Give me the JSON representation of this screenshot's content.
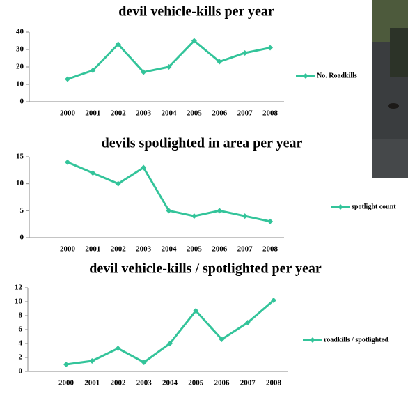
{
  "chart_data": [
    {
      "type": "line",
      "title": "devil vehicle-kills per year",
      "categories": [
        "2000",
        "2001",
        "2002",
        "2003",
        "2004",
        "2005",
        "2006",
        "2007",
        "2008"
      ],
      "series": [
        {
          "name": "No. Roadkills",
          "color": "#33c49a",
          "values": [
            13,
            18,
            33,
            17,
            20,
            35,
            23,
            28,
            31
          ]
        }
      ],
      "ylim": [
        0,
        40
      ],
      "yticks": [
        0,
        10,
        20,
        30,
        40
      ]
    },
    {
      "type": "line",
      "title": "devils spotlighted in area per year",
      "categories": [
        "2000",
        "2001",
        "2002",
        "2003",
        "2004",
        "2005",
        "2006",
        "2007",
        "2008"
      ],
      "series": [
        {
          "name": "spotlight count",
          "color": "#33c49a",
          "values": [
            14,
            12,
            10,
            13,
            5,
            4,
            5,
            4,
            3
          ]
        }
      ],
      "ylim": [
        0,
        15
      ],
      "yticks": [
        0,
        5,
        10,
        15
      ]
    },
    {
      "type": "line",
      "title": "devil vehicle-kills / spotlighted per year",
      "categories": [
        "2000",
        "2001",
        "2002",
        "2003",
        "2004",
        "2005",
        "2006",
        "2007",
        "2008"
      ],
      "series": [
        {
          "name": "roadkills / spotlighted",
          "color": "#33c49a",
          "values": [
            1,
            1.5,
            3.3,
            1.3,
            4,
            8.7,
            4.6,
            7,
            10.2
          ]
        }
      ],
      "ylim": [
        0,
        12
      ],
      "yticks": [
        0,
        2,
        4,
        6,
        8,
        10,
        12
      ]
    }
  ]
}
